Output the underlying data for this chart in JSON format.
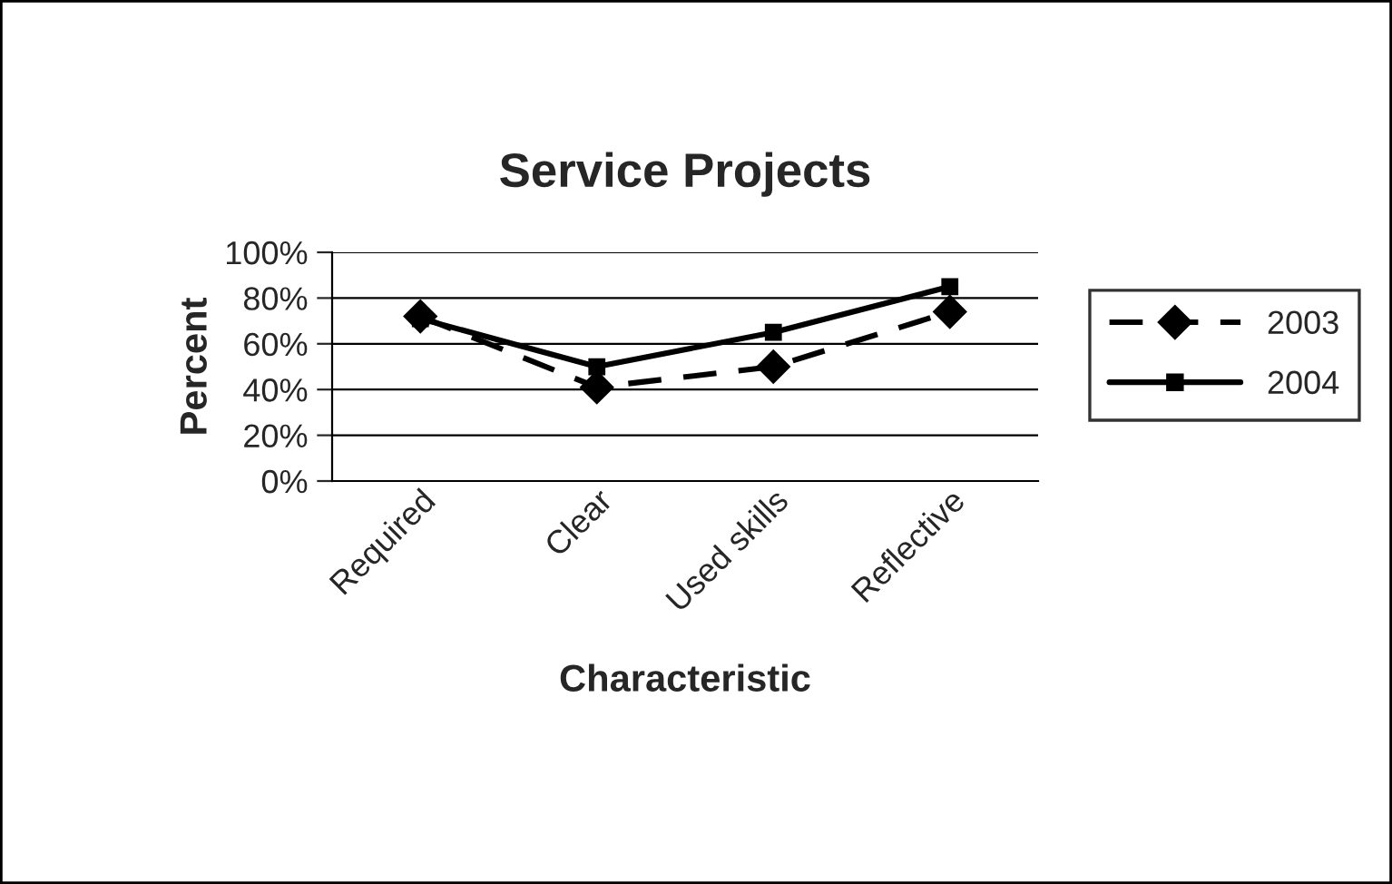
{
  "chart_data": {
    "type": "line",
    "title": "Service Projects",
    "xlabel": "Characteristic",
    "ylabel": "Percent",
    "categories": [
      "Required",
      "Clear",
      "Used skills",
      "Reflective"
    ],
    "series": [
      {
        "name": "2003",
        "color": "#000000",
        "values": [
          72,
          41,
          50,
          74
        ],
        "marker": "diamond",
        "line_style": "dashed"
      },
      {
        "name": "2004",
        "color": "#000000",
        "values": [
          71,
          50,
          65,
          85
        ],
        "marker": "square",
        "line_style": "solid"
      }
    ],
    "ylim": [
      0,
      100
    ],
    "yticks": [
      {
        "value": 0,
        "label": "0%"
      },
      {
        "value": 20,
        "label": "20%"
      },
      {
        "value": 40,
        "label": "40%"
      },
      {
        "value": 60,
        "label": "60%"
      },
      {
        "value": 80,
        "label": "80%"
      },
      {
        "value": 100,
        "label": "100%"
      }
    ],
    "grid": "y",
    "legend": "right"
  }
}
